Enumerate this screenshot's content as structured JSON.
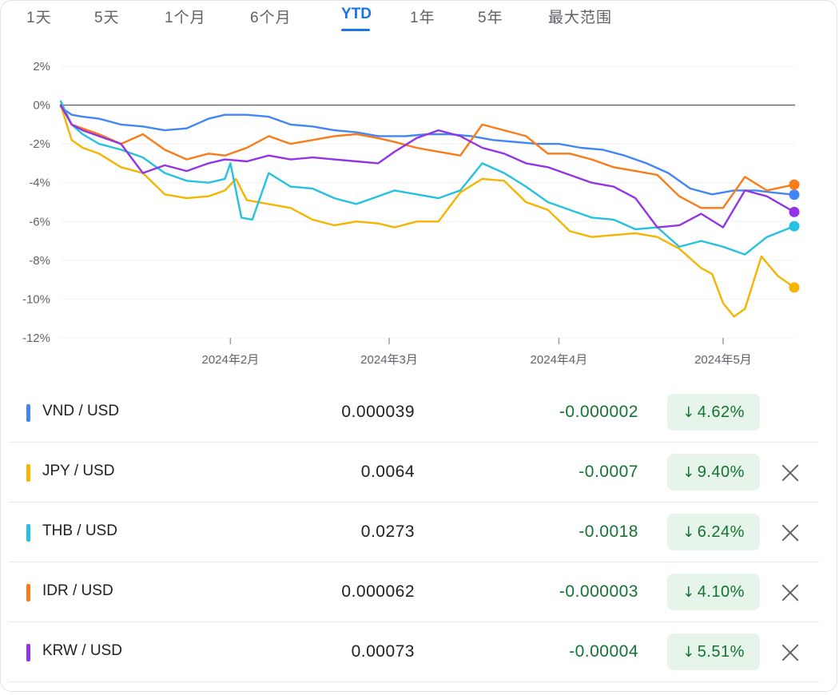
{
  "tabs": [
    {
      "label": "1天",
      "active": false
    },
    {
      "label": "5天",
      "active": false
    },
    {
      "label": "1个月",
      "active": false
    },
    {
      "label": "6个月",
      "active": false
    },
    {
      "label": "YTD",
      "active": true
    },
    {
      "label": "1年",
      "active": false
    },
    {
      "label": "5年",
      "active": false
    },
    {
      "label": "最大范围",
      "active": false
    }
  ],
  "chart_data": {
    "type": "line",
    "title": "",
    "xlabel": "",
    "ylabel": "",
    "x_range": [
      "2024-01-01",
      "2024-05-14"
    ],
    "ylim": [
      -12,
      2
    ],
    "y_ticks": [
      2,
      0,
      -2,
      -4,
      -6,
      -8,
      -10,
      -12
    ],
    "y_tick_labels": [
      "2%",
      "0%",
      "-2%",
      "-4%",
      "-6%",
      "-8%",
      "-10%",
      "-12%"
    ],
    "x_ticks": [
      "2024-02-01",
      "2024-03-01",
      "2024-04-01",
      "2024-05-01"
    ],
    "x_tick_labels": [
      "2024年2月",
      "2024年3月",
      "2024年4月",
      "2024年5月"
    ],
    "grid": true,
    "baseline": 0,
    "series": [
      {
        "name": "VND / USD",
        "color": "#4285f4",
        "x": [
          "2024-01-01",
          "2024-01-03",
          "2024-01-05",
          "2024-01-08",
          "2024-01-12",
          "2024-01-16",
          "2024-01-20",
          "2024-01-24",
          "2024-01-28",
          "2024-01-31",
          "2024-02-04",
          "2024-02-08",
          "2024-02-12",
          "2024-02-16",
          "2024-02-20",
          "2024-02-24",
          "2024-02-28",
          "2024-03-04",
          "2024-03-08",
          "2024-03-12",
          "2024-03-16",
          "2024-03-20",
          "2024-03-24",
          "2024-03-28",
          "2024-04-01",
          "2024-04-05",
          "2024-04-09",
          "2024-04-13",
          "2024-04-17",
          "2024-04-21",
          "2024-04-25",
          "2024-04-29",
          "2024-05-03",
          "2024-05-07",
          "2024-05-10",
          "2024-05-14"
        ],
        "y": [
          -0.1,
          -0.5,
          -0.6,
          -0.7,
          -1.0,
          -1.1,
          -1.3,
          -1.2,
          -0.7,
          -0.5,
          -0.5,
          -0.6,
          -1.0,
          -1.1,
          -1.3,
          -1.4,
          -1.6,
          -1.6,
          -1.5,
          -1.5,
          -1.6,
          -1.8,
          -1.9,
          -2.0,
          -2.0,
          -2.2,
          -2.3,
          -2.6,
          -3.0,
          -3.5,
          -4.3,
          -4.6,
          -4.4,
          -4.4,
          -4.5,
          -4.62
        ]
      },
      {
        "name": "JPY / USD",
        "color": "#f4b400",
        "x": [
          "2024-01-01",
          "2024-01-03",
          "2024-01-05",
          "2024-01-08",
          "2024-01-12",
          "2024-01-16",
          "2024-01-20",
          "2024-01-24",
          "2024-01-28",
          "2024-01-31",
          "2024-02-02",
          "2024-02-04",
          "2024-02-08",
          "2024-02-12",
          "2024-02-16",
          "2024-02-20",
          "2024-02-24",
          "2024-02-28",
          "2024-03-02",
          "2024-03-06",
          "2024-03-10",
          "2024-03-14",
          "2024-03-18",
          "2024-03-22",
          "2024-03-26",
          "2024-03-30",
          "2024-04-03",
          "2024-04-07",
          "2024-04-11",
          "2024-04-15",
          "2024-04-19",
          "2024-04-23",
          "2024-04-27",
          "2024-04-29",
          "2024-05-01",
          "2024-05-03",
          "2024-05-05",
          "2024-05-08",
          "2024-05-11",
          "2024-05-14"
        ],
        "y": [
          0.0,
          -1.8,
          -2.2,
          -2.5,
          -3.2,
          -3.5,
          -4.6,
          -4.8,
          -4.7,
          -4.4,
          -3.8,
          -4.9,
          -5.1,
          -5.3,
          -5.9,
          -6.2,
          -6.0,
          -6.1,
          -6.3,
          -6.0,
          -6.0,
          -4.5,
          -3.8,
          -3.9,
          -5.0,
          -5.4,
          -6.5,
          -6.8,
          -6.7,
          -6.6,
          -6.8,
          -7.4,
          -8.4,
          -8.7,
          -10.2,
          -10.9,
          -10.5,
          -7.8,
          -8.8,
          -9.4
        ]
      },
      {
        "name": "THB / USD",
        "color": "#24c1e0",
        "x": [
          "2024-01-01",
          "2024-01-03",
          "2024-01-05",
          "2024-01-08",
          "2024-01-12",
          "2024-01-16",
          "2024-01-20",
          "2024-01-24",
          "2024-01-28",
          "2024-01-31",
          "2024-02-01",
          "2024-02-03",
          "2024-02-05",
          "2024-02-08",
          "2024-02-12",
          "2024-02-16",
          "2024-02-20",
          "2024-02-24",
          "2024-02-28",
          "2024-03-02",
          "2024-03-06",
          "2024-03-10",
          "2024-03-14",
          "2024-03-18",
          "2024-03-22",
          "2024-03-26",
          "2024-03-30",
          "2024-04-03",
          "2024-04-07",
          "2024-04-11",
          "2024-04-15",
          "2024-04-19",
          "2024-04-23",
          "2024-04-27",
          "2024-05-01",
          "2024-05-05",
          "2024-05-09",
          "2024-05-14"
        ],
        "y": [
          0.2,
          -1.0,
          -1.5,
          -2.0,
          -2.3,
          -2.7,
          -3.5,
          -3.9,
          -4.0,
          -3.8,
          -3.0,
          -5.8,
          -5.9,
          -3.5,
          -4.2,
          -4.3,
          -4.8,
          -5.1,
          -4.7,
          -4.4,
          -4.6,
          -4.8,
          -4.4,
          -3.0,
          -3.5,
          -4.2,
          -5.0,
          -5.4,
          -5.8,
          -5.9,
          -6.4,
          -6.3,
          -7.3,
          -7.0,
          -7.3,
          -7.7,
          -6.8,
          -6.24
        ]
      },
      {
        "name": "IDR / USD",
        "color": "#fa7b17",
        "x": [
          "2024-01-01",
          "2024-01-03",
          "2024-01-05",
          "2024-01-08",
          "2024-01-12",
          "2024-01-16",
          "2024-01-20",
          "2024-01-24",
          "2024-01-28",
          "2024-01-31",
          "2024-02-04",
          "2024-02-08",
          "2024-02-12",
          "2024-02-16",
          "2024-02-20",
          "2024-02-24",
          "2024-02-28",
          "2024-03-02",
          "2024-03-06",
          "2024-03-10",
          "2024-03-14",
          "2024-03-18",
          "2024-03-22",
          "2024-03-26",
          "2024-03-30",
          "2024-04-03",
          "2024-04-07",
          "2024-04-11",
          "2024-04-15",
          "2024-04-19",
          "2024-04-23",
          "2024-04-27",
          "2024-05-01",
          "2024-05-05",
          "2024-05-09",
          "2024-05-14"
        ],
        "y": [
          0.0,
          -1.0,
          -1.2,
          -1.5,
          -2.0,
          -1.5,
          -2.3,
          -2.8,
          -2.5,
          -2.6,
          -2.2,
          -1.6,
          -2.0,
          -1.8,
          -1.6,
          -1.5,
          -1.7,
          -1.9,
          -2.2,
          -2.4,
          -2.6,
          -1.0,
          -1.3,
          -1.6,
          -2.5,
          -2.5,
          -2.8,
          -3.2,
          -3.4,
          -3.6,
          -4.7,
          -5.3,
          -5.3,
          -3.7,
          -4.4,
          -4.1
        ]
      },
      {
        "name": "KRW / USD",
        "color": "#9334e6",
        "x": [
          "2024-01-01",
          "2024-01-03",
          "2024-01-05",
          "2024-01-08",
          "2024-01-12",
          "2024-01-16",
          "2024-01-20",
          "2024-01-24",
          "2024-01-28",
          "2024-01-31",
          "2024-02-04",
          "2024-02-08",
          "2024-02-12",
          "2024-02-16",
          "2024-02-20",
          "2024-02-24",
          "2024-02-28",
          "2024-03-02",
          "2024-03-06",
          "2024-03-10",
          "2024-03-14",
          "2024-03-18",
          "2024-03-22",
          "2024-03-26",
          "2024-03-30",
          "2024-04-03",
          "2024-04-07",
          "2024-04-11",
          "2024-04-15",
          "2024-04-19",
          "2024-04-23",
          "2024-04-27",
          "2024-05-01",
          "2024-05-05",
          "2024-05-09",
          "2024-05-14"
        ],
        "y": [
          0.0,
          -1.0,
          -1.3,
          -1.6,
          -2.0,
          -3.5,
          -3.1,
          -3.4,
          -3.0,
          -2.8,
          -2.9,
          -2.6,
          -2.8,
          -2.7,
          -2.8,
          -2.9,
          -3.0,
          -2.4,
          -1.7,
          -1.3,
          -1.6,
          -2.2,
          -2.5,
          -3.0,
          -3.2,
          -3.6,
          -4.0,
          -4.2,
          -4.8,
          -6.3,
          -6.2,
          -5.6,
          -6.3,
          -4.4,
          -4.7,
          -5.51
        ]
      }
    ]
  },
  "rows": [
    {
      "pair": "VND / USD",
      "price": "0.000039",
      "change": "-0.000002",
      "pct": "4.62%",
      "color": "#4285f4",
      "removable": false
    },
    {
      "pair": "JPY / USD",
      "price": "0.0064",
      "change": "-0.0007",
      "pct": "9.40%",
      "color": "#f4b400",
      "removable": true
    },
    {
      "pair": "THB / USD",
      "price": "0.0273",
      "change": "-0.0018",
      "pct": "6.24%",
      "color": "#24c1e0",
      "removable": true
    },
    {
      "pair": "IDR / USD",
      "price": "0.000062",
      "change": "-0.000003",
      "pct": "4.10%",
      "color": "#fa7b17",
      "removable": true
    },
    {
      "pair": "KRW / USD",
      "price": "0.00073",
      "change": "-0.00004",
      "pct": "5.51%",
      "color": "#9334e6",
      "removable": true
    }
  ],
  "icons": {
    "down_arrow": "arrow-down-icon",
    "remove": "close-icon"
  }
}
